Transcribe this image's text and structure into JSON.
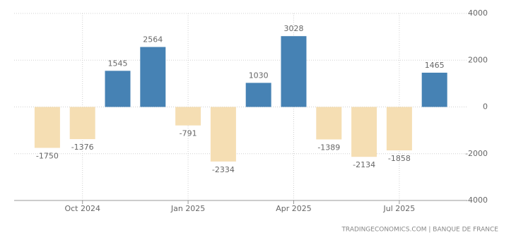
{
  "chart_data": {
    "type": "bar",
    "categories": [
      null,
      "Oct 2024",
      null,
      null,
      "Jan 2025",
      null,
      null,
      "Apr 2025",
      null,
      null,
      "Jul 2025",
      null
    ],
    "values": [
      -1750,
      -1376,
      1545,
      2564,
      -791,
      -2334,
      1030,
      3028,
      -1389,
      -2134,
      -1858,
      1465
    ],
    "positive_color": "#4682b4",
    "negative_color": "#f5deb3",
    "ylim": [
      -4000,
      4000
    ],
    "yticks": [
      -4000,
      -2000,
      0,
      2000,
      4000
    ],
    "grid": true,
    "source": "TRADINGECONOMICS.COM | BANQUE DE FRANCE"
  }
}
